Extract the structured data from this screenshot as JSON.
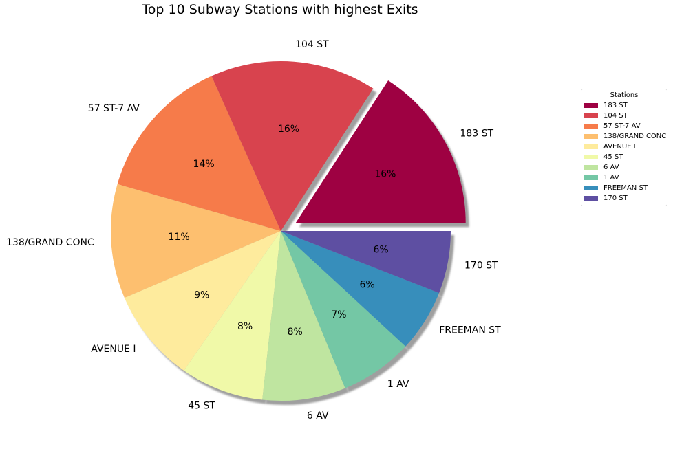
{
  "chart_data": {
    "type": "pie",
    "title": "Top 10 Subway Stations with highest Exits",
    "labels": [
      "183 ST",
      "104 ST",
      "57 ST-7 AV",
      "138/GRAND CONC",
      "AVENUE I",
      "45 ST",
      "6 AV",
      "1 AV",
      "FREEMAN ST",
      "170 ST"
    ],
    "values": [
      16,
      16,
      14,
      11,
      9,
      8,
      8,
      7,
      6,
      6
    ],
    "percent_labels": [
      "16%",
      "16%",
      "14%",
      "11%",
      "9%",
      "8%",
      "8%",
      "7%",
      "6%",
      "6%"
    ],
    "colors": [
      "#9e0142",
      "#d8434e",
      "#f67b4a",
      "#fdbf6f",
      "#feeb9d",
      "#f0f9a8",
      "#bfe5a0",
      "#74c7a5",
      "#378ebb",
      "#5e4fa2"
    ],
    "explode": [
      0.1,
      0,
      0,
      0,
      0,
      0,
      0,
      0,
      0,
      0
    ],
    "shadow": true,
    "start_angle_deg": 0,
    "direction": "counterclockwise",
    "legend": {
      "title": "Stations",
      "placement": "right"
    }
  }
}
